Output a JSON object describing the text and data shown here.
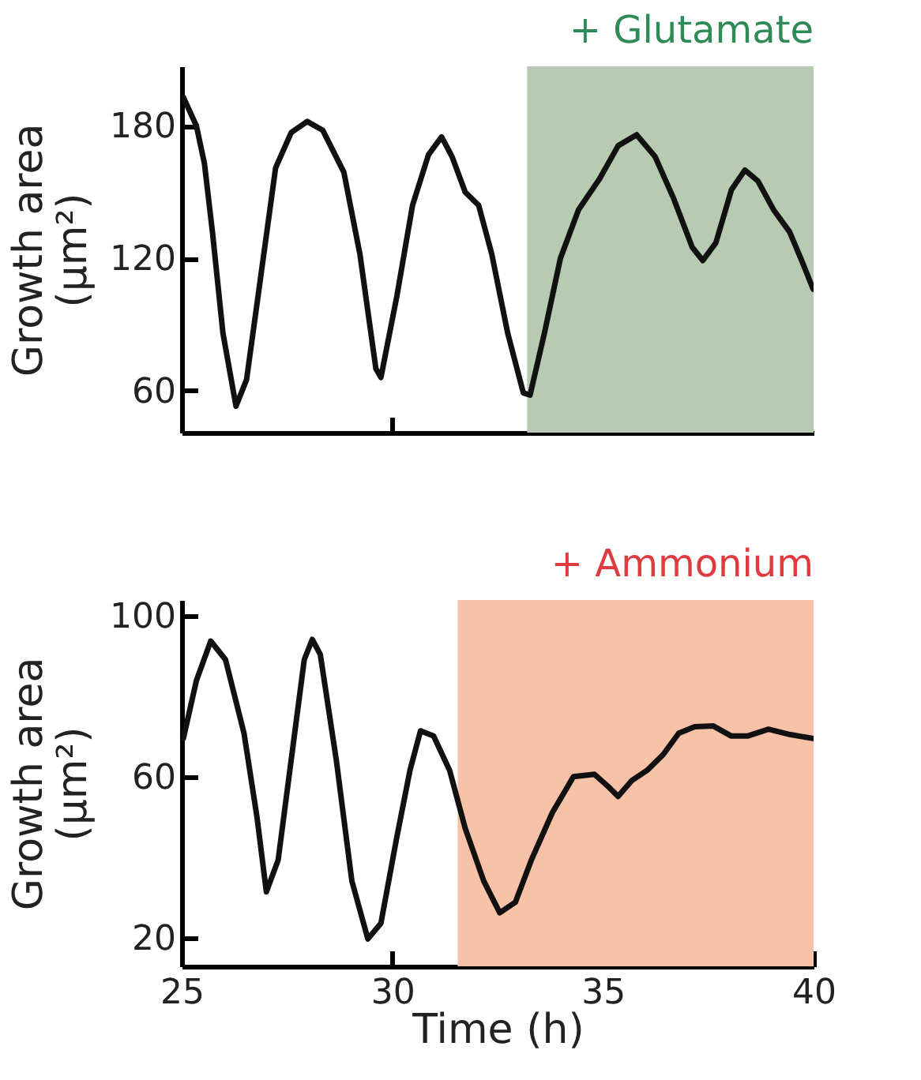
{
  "chart_data": [
    {
      "type": "line",
      "ylabel": "Growth area (µm²)",
      "xlim": [
        25,
        40
      ],
      "xticks": [
        {
          "value": 30,
          "label": null
        },
        {
          "value": 35,
          "label": null
        }
      ],
      "ylim": [
        41,
        207
      ],
      "yticks": [
        60,
        120,
        180
      ],
      "tick_labels": "y",
      "grid": false,
      "bands": [
        {
          "axis": "x",
          "from": 33.2,
          "to": 40,
          "label": "+ Glutamate",
          "color": "#b7cbb3"
        }
      ],
      "series": [
        {
          "color": "#111111",
          "x": [
            25.04,
            25.35,
            25.54,
            25.73,
            25.98,
            26.29,
            26.54,
            26.85,
            27.23,
            27.6,
            27.98,
            28.35,
            28.85,
            29.23,
            29.61,
            29.73,
            30.11,
            30.48,
            30.86,
            31.17,
            31.42,
            31.73,
            32.05,
            32.36,
            32.74,
            33.11,
            33.27,
            33.61,
            33.99,
            34.42,
            34.92,
            35.36,
            35.8,
            36.24,
            36.68,
            37.12,
            37.37,
            37.68,
            38.05,
            38.37,
            38.68,
            39.05,
            39.43,
            39.74,
            39.99
          ],
          "values": [
            193,
            180,
            163,
            132,
            86,
            53,
            65,
            108,
            161,
            177,
            182,
            178,
            159,
            122,
            70,
            66,
            103,
            144,
            167,
            175,
            166,
            150,
            144,
            122,
            86,
            59,
            58,
            86,
            120,
            142,
            156,
            171,
            176,
            166,
            147,
            125,
            119,
            127,
            151,
            160,
            155,
            142,
            132,
            118,
            106
          ]
        }
      ]
    },
    {
      "type": "line",
      "ylabel": "Growth area (µm²)",
      "xlabel": "Time (h)",
      "xlim": [
        25,
        40
      ],
      "xticks": [
        25,
        30,
        35,
        40
      ],
      "ylim": [
        13,
        104
      ],
      "yticks": [
        20,
        60,
        100
      ],
      "grid": false,
      "bands": [
        {
          "axis": "x",
          "from": 31.55,
          "to": 40,
          "label": "+ Ammonium",
          "color": "#f8c2a8"
        }
      ],
      "series": [
        {
          "color": "#111111",
          "x": [
            25.04,
            25.35,
            25.69,
            26.04,
            26.48,
            26.79,
            27.01,
            27.29,
            27.6,
            27.91,
            28.1,
            28.29,
            28.67,
            29.04,
            29.42,
            29.73,
            30.1,
            30.42,
            30.67,
            30.98,
            31.36,
            31.73,
            32.17,
            32.55,
            32.92,
            33.3,
            33.8,
            34.3,
            34.8,
            35.11,
            35.36,
            35.68,
            36.05,
            36.43,
            36.8,
            37.18,
            37.62,
            38.05,
            38.43,
            38.93,
            39.43,
            39.99
          ],
          "values": [
            69.6,
            84,
            93.8,
            89.2,
            70.9,
            49.9,
            31.5,
            39.4,
            64.3,
            89.2,
            94.2,
            90.5,
            64.3,
            34.2,
            19.8,
            23.7,
            44.7,
            61.7,
            71.5,
            70.2,
            61.7,
            47.3,
            34.2,
            26.3,
            28.9,
            39.4,
            51.2,
            60.1,
            60.7,
            57.8,
            55.2,
            59.1,
            61.7,
            65.6,
            70.9,
            72.5,
            72.7,
            70.2,
            70.2,
            71.9,
            70.6,
            69.6
          ]
        }
      ]
    }
  ]
}
